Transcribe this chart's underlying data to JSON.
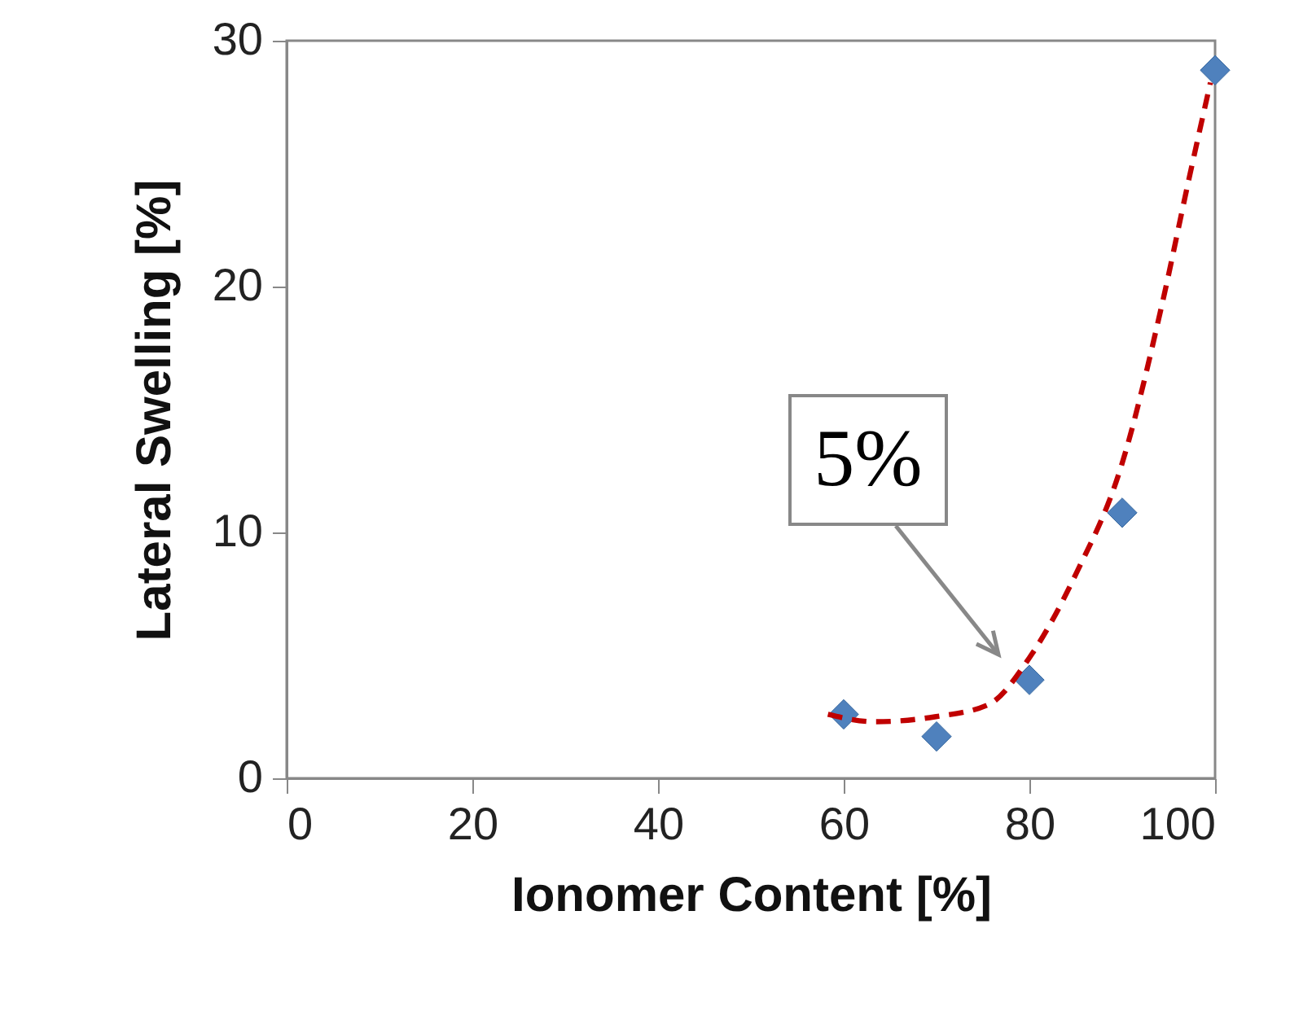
{
  "chart_data": {
    "type": "scatter",
    "xlabel": "Ionomer Content [%]",
    "ylabel": "Lateral  Swelling [%]",
    "xlim": [
      0,
      100
    ],
    "xticks": [
      0,
      20,
      40,
      60,
      80,
      100
    ],
    "ylim": [
      0,
      30
    ],
    "yticks": [
      0,
      10,
      20,
      30
    ],
    "grid": false,
    "series": [
      {
        "type": "scatter",
        "color": "#4f81bd",
        "marker": "diamond",
        "x": [
          60,
          70,
          80,
          90,
          100
        ],
        "values": [
          2.6,
          1.7,
          4.0,
          10.8,
          28.8
        ]
      },
      {
        "type": "line",
        "color": "#c00000",
        "line_style": "dashed",
        "marker": "none",
        "x": [
          58.3,
          63.3,
          69.8,
          75.6,
          80,
          85,
          89.9,
          94.3,
          97.2,
          99.5
        ],
        "values": [
          2.6,
          2.3,
          2.5,
          3.0,
          4.9,
          8.3,
          12.7,
          19.3,
          24.4,
          28.3
        ]
      }
    ],
    "annotations": [
      "5%"
    ]
  }
}
